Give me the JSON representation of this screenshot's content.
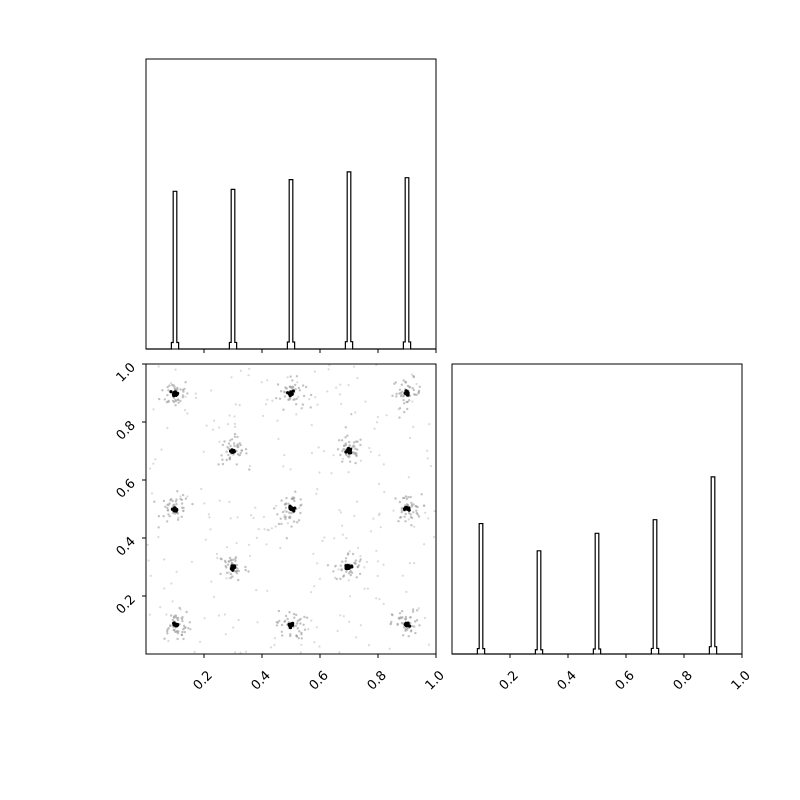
{
  "chart_data": [
    {
      "type": "histogram",
      "panel": "top-left marginal (x)",
      "xlim": [
        0,
        1
      ],
      "peaks": [
        {
          "x": 0.1,
          "relative_height": 0.81
        },
        {
          "x": 0.3,
          "relative_height": 0.82
        },
        {
          "x": 0.5,
          "relative_height": 0.87
        },
        {
          "x": 0.7,
          "relative_height": 0.91
        },
        {
          "x": 0.9,
          "relative_height": 0.88
        }
      ],
      "xticks": [
        0.2,
        0.4,
        0.6,
        0.8,
        1.0
      ],
      "show_tick_labels": false,
      "title": "",
      "xlabel": "",
      "ylabel": "",
      "color": "#000000"
    },
    {
      "type": "scatter",
      "panel": "bottom-left joint (x vs y)",
      "xlim": [
        0,
        1
      ],
      "ylim": [
        0,
        1
      ],
      "clusters": [
        {
          "x": 0.1,
          "y": 0.9
        },
        {
          "x": 0.5,
          "y": 0.9
        },
        {
          "x": 0.9,
          "y": 0.9
        },
        {
          "x": 0.3,
          "y": 0.7
        },
        {
          "x": 0.7,
          "y": 0.7
        },
        {
          "x": 0.1,
          "y": 0.5
        },
        {
          "x": 0.5,
          "y": 0.5
        },
        {
          "x": 0.9,
          "y": 0.5
        },
        {
          "x": 0.3,
          "y": 0.3
        },
        {
          "x": 0.7,
          "y": 0.3
        },
        {
          "x": 0.1,
          "y": 0.1
        },
        {
          "x": 0.5,
          "y": 0.1
        },
        {
          "x": 0.9,
          "y": 0.1
        }
      ],
      "xticks": [
        0.2,
        0.4,
        0.6,
        0.8,
        1.0
      ],
      "yticks": [
        0.2,
        0.4,
        0.6,
        0.8,
        1.0
      ],
      "xtick_labels": [
        "0.2",
        "0.4",
        "0.6",
        "0.8",
        "1.0"
      ],
      "ytick_labels": [
        "0.2",
        "0.4",
        "0.6",
        "0.8",
        "1.0"
      ],
      "title": "",
      "xlabel": "",
      "ylabel": "",
      "point_color": "#000000",
      "noise_color": "#bbbbbb"
    },
    {
      "type": "histogram",
      "panel": "bottom-right marginal (y)",
      "xlim": [
        0,
        1
      ],
      "peaks": [
        {
          "x": 0.1,
          "relative_height": 0.67
        },
        {
          "x": 0.3,
          "relative_height": 0.53
        },
        {
          "x": 0.5,
          "relative_height": 0.62
        },
        {
          "x": 0.7,
          "relative_height": 0.69
        },
        {
          "x": 0.9,
          "relative_height": 0.91
        }
      ],
      "xticks": [
        0.2,
        0.4,
        0.6,
        0.8,
        1.0
      ],
      "xtick_labels": [
        "0.2",
        "0.4",
        "0.6",
        "0.8",
        "1.0"
      ],
      "title": "",
      "xlabel": "",
      "ylabel": "",
      "color": "#000000"
    }
  ]
}
